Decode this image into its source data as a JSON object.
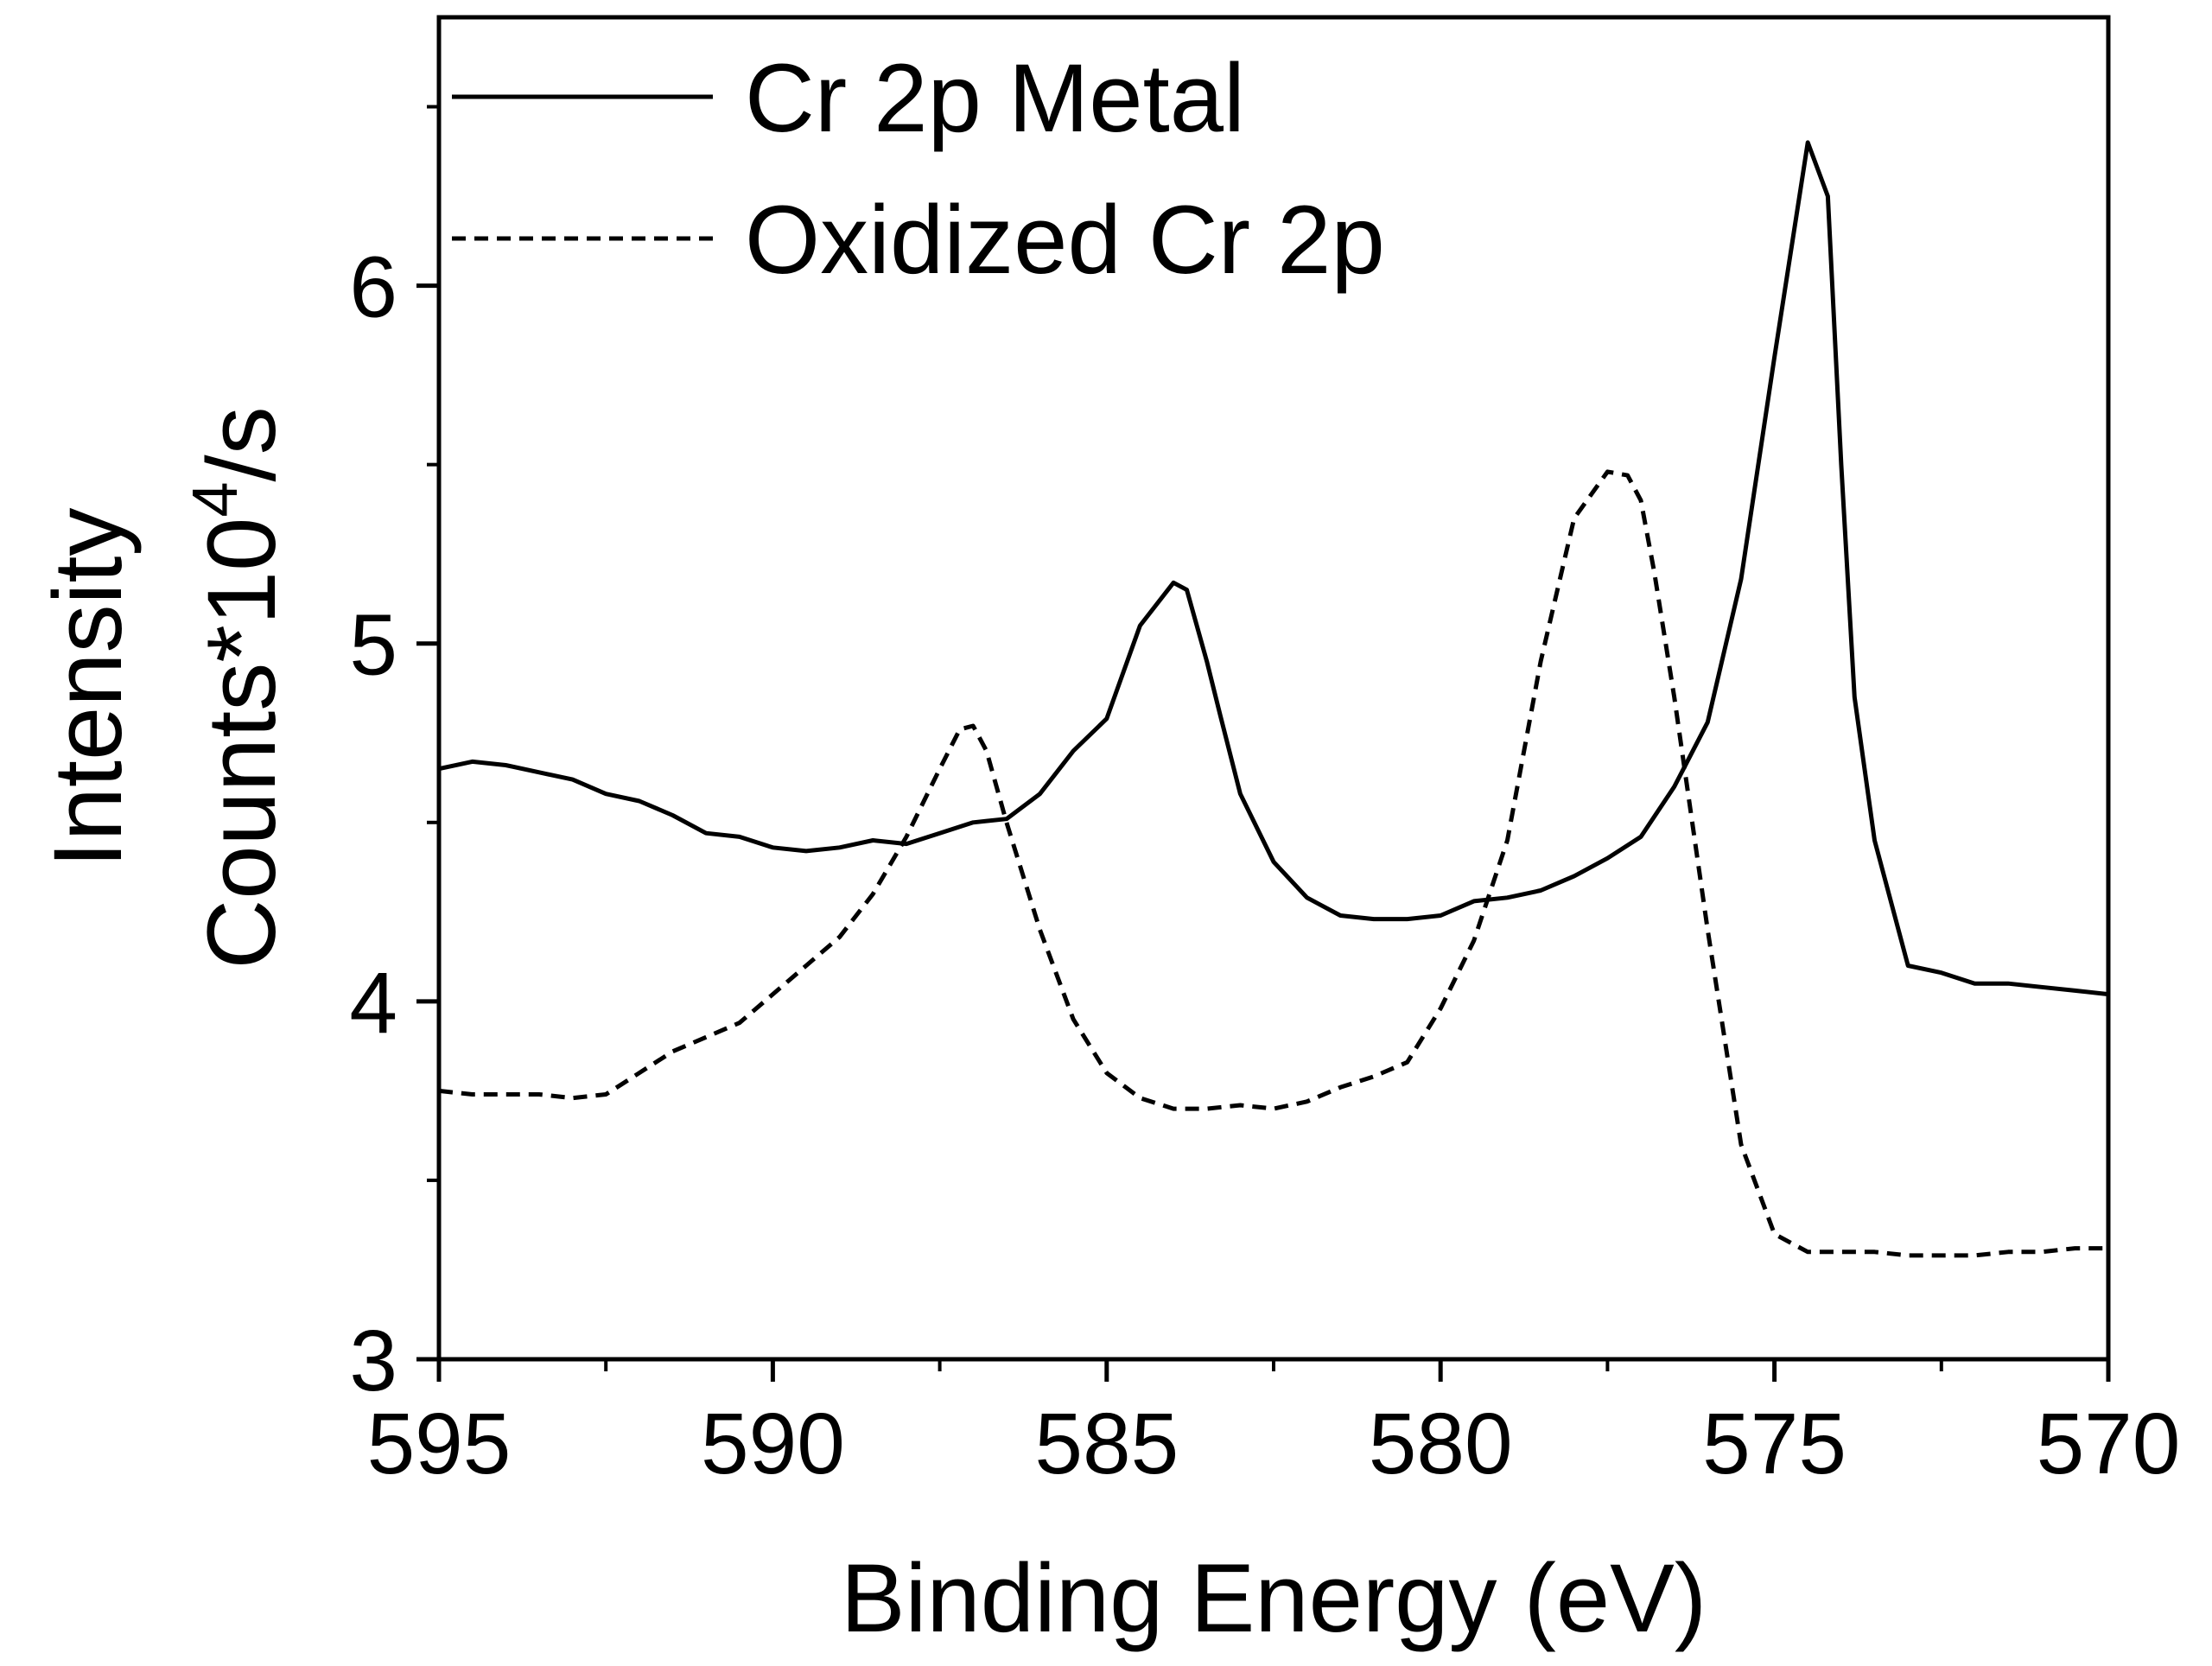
{
  "chart_data": {
    "type": "line",
    "xlabel": "Binding Energy (eV)",
    "ylabel_line1": "Intensity",
    "ylabel_line2_prefix": "Counts*10",
    "ylabel_line2_sup": "4",
    "ylabel_line2_suffix": "/s",
    "xlim": [
      595,
      570
    ],
    "ylim": [
      3,
      6.75
    ],
    "x_reversed": true,
    "x_ticks": [
      595,
      590,
      585,
      580,
      575,
      570
    ],
    "x_tick_labels": [
      "595",
      "590",
      "585",
      "580",
      "575",
      "570"
    ],
    "y_ticks": [
      3,
      4,
      5,
      6
    ],
    "y_tick_labels": [
      "3",
      "4",
      "5",
      "6"
    ],
    "grid": false,
    "legend_position": "top-left",
    "series": [
      {
        "name": "Cr 2p Metal",
        "style": "solid",
        "color": "#000000",
        "x": [
          595,
          594.5,
          594,
          593.5,
          593,
          592.5,
          592,
          591.5,
          591,
          590.5,
          590,
          589.5,
          589,
          588.5,
          588,
          587.5,
          587,
          586.5,
          586,
          585.5,
          585,
          584.5,
          584,
          583.8,
          583.5,
          583.3,
          583,
          582.5,
          582,
          581.5,
          581,
          580.5,
          580,
          579.5,
          579,
          578.5,
          578,
          577.5,
          577,
          576.5,
          576,
          575.5,
          575,
          574.5,
          574.2,
          574.0,
          573.8,
          573.5,
          573,
          572.5,
          572,
          571.5,
          571,
          570.5,
          570
        ],
        "y": [
          4.65,
          4.67,
          4.66,
          4.64,
          4.62,
          4.58,
          4.56,
          4.52,
          4.47,
          4.46,
          4.43,
          4.42,
          4.43,
          4.45,
          4.44,
          4.47,
          4.5,
          4.51,
          4.58,
          4.7,
          4.79,
          5.05,
          5.17,
          5.15,
          4.95,
          4.8,
          4.58,
          4.39,
          4.29,
          4.24,
          4.23,
          4.23,
          4.24,
          4.28,
          4.29,
          4.31,
          4.35,
          4.4,
          4.46,
          4.6,
          4.78,
          5.18,
          5.8,
          6.4,
          6.25,
          5.5,
          4.85,
          4.45,
          4.1,
          4.08,
          4.05,
          4.05,
          4.04,
          4.03,
          4.02
        ]
      },
      {
        "name": "Oxidized Cr 2p",
        "style": "dashed",
        "color": "#000000",
        "x": [
          595,
          594.5,
          594,
          593.5,
          593,
          592.5,
          592,
          591.5,
          591,
          590.5,
          590,
          589.5,
          589,
          588.5,
          588,
          587.5,
          587.2,
          587,
          586.8,
          586.5,
          586,
          585.5,
          585,
          584.5,
          584,
          583.5,
          583,
          582.5,
          582,
          581.5,
          581,
          580.5,
          580,
          579.5,
          579,
          578.5,
          578,
          577.5,
          577.2,
          577,
          576.8,
          576.5,
          576,
          575.5,
          575,
          574.5,
          574,
          573.5,
          573,
          572.5,
          572,
          571.5,
          571,
          570.5,
          570
        ],
        "y": [
          3.75,
          3.74,
          3.74,
          3.74,
          3.73,
          3.74,
          3.8,
          3.86,
          3.9,
          3.94,
          4.02,
          4.1,
          4.18,
          4.3,
          4.46,
          4.65,
          4.76,
          4.77,
          4.7,
          4.5,
          4.2,
          3.95,
          3.8,
          3.73,
          3.7,
          3.7,
          3.71,
          3.7,
          3.72,
          3.76,
          3.79,
          3.83,
          3.98,
          4.17,
          4.45,
          4.95,
          5.35,
          5.48,
          5.47,
          5.4,
          5.2,
          4.85,
          4.2,
          3.6,
          3.35,
          3.3,
          3.3,
          3.3,
          3.29,
          3.29,
          3.29,
          3.3,
          3.3,
          3.31,
          3.31
        ]
      }
    ]
  }
}
